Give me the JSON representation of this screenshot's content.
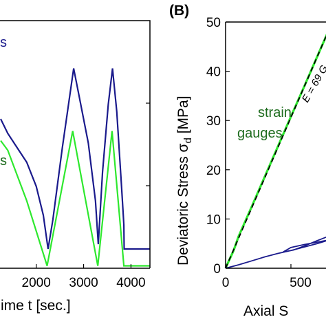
{
  "figure": {
    "panel_b_label": "(B)",
    "left_xlabel": "ime t [sec.]",
    "right_xlabel": "Axial S",
    "right_ylabel": "Deviatoric Stress σ",
    "right_ylabel_sub": "d",
    "right_ylabel_unit": " [MPa]",
    "annot_left_blue": "s",
    "annot_left_green": "s",
    "annot_strain_line1": "strain",
    "annot_strain_line2": "gauges",
    "annot_modulus": "E = 69 G"
  },
  "colors": {
    "blue": "#1a1a8c",
    "green": "#2ee82e",
    "dark_green": "#1d6b1d",
    "axis": "#000000"
  },
  "chart_data": [
    {
      "type": "line",
      "panel": "left",
      "xlabel": "ime t [sec.]",
      "ylabel": "",
      "xlim": [
        1250,
        4400
      ],
      "x_ticks": [
        2000,
        3000,
        4000
      ],
      "x_tick_labels": [
        "2000",
        "3000",
        "4000"
      ],
      "grid": false,
      "series": [
        {
          "color": "#1a1a8c",
          "points": [
            [
              1250,
              0.62
            ],
            [
              1400,
              0.56
            ],
            [
              1600,
              0.5
            ],
            [
              1800,
              0.44
            ],
            [
              2000,
              0.34
            ],
            [
              2150,
              0.22
            ],
            [
              2250,
              0.08
            ],
            [
              2350,
              0.2
            ],
            [
              2550,
              0.5
            ],
            [
              2790,
              0.83
            ],
            [
              2900,
              0.72
            ],
            [
              3100,
              0.52
            ],
            [
              3250,
              0.28
            ],
            [
              3310,
              0.1
            ],
            [
              3400,
              0.4
            ],
            [
              3520,
              0.68
            ],
            [
              3610,
              0.83
            ],
            [
              3700,
              0.65
            ],
            [
              3800,
              0.34
            ],
            [
              3850,
              0.18
            ],
            [
              3855,
              0.08
            ],
            [
              4400,
              0.08
            ]
          ]
        },
        {
          "color": "#2ee82e",
          "points": [
            [
              1250,
              0.53
            ],
            [
              1400,
              0.49
            ],
            [
              1800,
              0.28
            ],
            [
              2230,
              0.01
            ],
            [
              2770,
              0.57
            ],
            [
              3300,
              0.01
            ],
            [
              3600,
              0.57
            ],
            [
              3850,
              0.01
            ],
            [
              4400,
              0.01
            ]
          ]
        }
      ]
    },
    {
      "type": "line",
      "panel": "right",
      "title": "",
      "xlabel": "Axial S",
      "ylabel": "Deviatoric Stress σd [MPa]",
      "xlim": [
        0,
        800
      ],
      "ylim": [
        0,
        50
      ],
      "x_ticks": [
        0,
        500
      ],
      "x_tick_labels": [
        "0",
        "500"
      ],
      "y_ticks": [
        0,
        10,
        20,
        30,
        40,
        50
      ],
      "y_tick_labels": [
        "0",
        "10",
        "20",
        "30",
        "40",
        "50"
      ],
      "grid": false,
      "series": [
        {
          "name": "strain gauges",
          "color": "#2ee82e",
          "points": [
            [
              0,
              0
            ],
            [
              20,
              1.2
            ],
            [
              60,
              3.5
            ],
            [
              100,
              6.5
            ],
            [
              200,
              12.5
            ],
            [
              300,
              18.6
            ],
            [
              400,
              24.7
            ],
            [
              500,
              30.8
            ],
            [
              600,
              36.8
            ],
            [
              700,
              42.9
            ],
            [
              800,
              49.0
            ]
          ]
        },
        {
          "name": "E = 69 G",
          "color": "#000000",
          "dashed": true,
          "points": [
            [
              0,
              0
            ],
            [
              800,
              49.0
            ]
          ]
        },
        {
          "color": "#1a1a8c",
          "points": [
            [
              0,
              0
            ],
            [
              100,
              0.7
            ],
            [
              200,
              1.5
            ],
            [
              300,
              2.3
            ],
            [
              400,
              3.0
            ],
            [
              500,
              3.6
            ],
            [
              600,
              4.3
            ],
            [
              700,
              5.0
            ],
            [
              800,
              5.8
            ],
            [
              700,
              5.3
            ],
            [
              600,
              4.8
            ],
            [
              500,
              4.2
            ],
            [
              440,
              3.3
            ],
            [
              520,
              3.7
            ],
            [
              600,
              4.5
            ],
            [
              700,
              5.6
            ],
            [
              800,
              6.6
            ]
          ]
        }
      ]
    }
  ]
}
